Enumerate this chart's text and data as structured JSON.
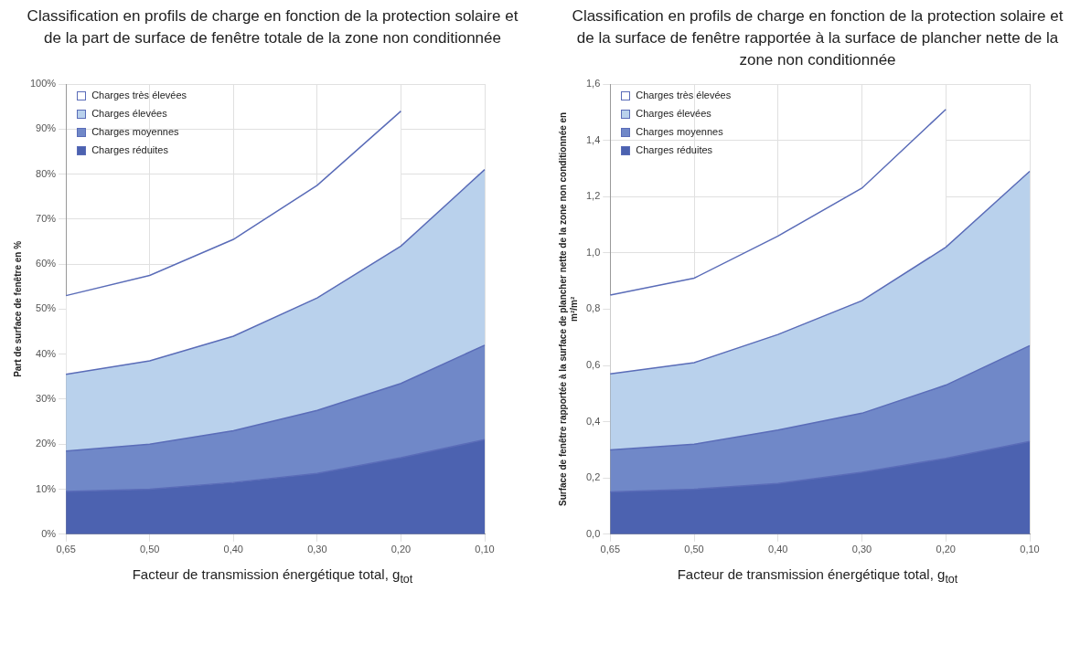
{
  "chart_data": [
    {
      "type": "area",
      "title": "Classification en profils de charge en fonction de la protection solaire et de la part de surface de fenêtre totale de la zone non conditionnée",
      "xlabel": "Facteur de transmission énergétique total, g$_{tot}$",
      "ylabel": "Part de surface de fenêtre en %",
      "categories": [
        "0,65",
        "0,50",
        "0,40",
        "0,30",
        "0,20",
        "0,10"
      ],
      "stacked": true,
      "ylim": [
        0,
        100
      ],
      "yticks": [
        {
          "value": 0,
          "label": "0%"
        },
        {
          "value": 10,
          "label": "10%"
        },
        {
          "value": 20,
          "label": "20%"
        },
        {
          "value": 30,
          "label": "30%"
        },
        {
          "value": 40,
          "label": "40%"
        },
        {
          "value": 50,
          "label": "50%"
        },
        {
          "value": 60,
          "label": "60%"
        },
        {
          "value": 70,
          "label": "70%"
        },
        {
          "value": 80,
          "label": "80%"
        },
        {
          "value": 90,
          "label": "90%"
        },
        {
          "value": 100,
          "label": "100%"
        }
      ],
      "grid": true,
      "legend": "top left",
      "series": [
        {
          "name": "Charges réduites",
          "color": "#4c62b0",
          "values": [
            9.5,
            10,
            11.5,
            13.5,
            17,
            21
          ]
        },
        {
          "name": "Charges moyennes",
          "color": "#7088c8",
          "values": [
            9,
            10,
            11.5,
            14,
            16.5,
            21
          ]
        },
        {
          "name": "Charges élevées",
          "color": "#b9d1ec",
          "values": [
            17,
            18.5,
            21,
            25,
            30.5,
            39
          ]
        },
        {
          "name": "Charges très élevées",
          "color": "#ffffff",
          "values": [
            17.5,
            19,
            21.5,
            25,
            30,
            null
          ]
        }
      ]
    },
    {
      "type": "area",
      "title": "Classification en profils de charge en fonction de la protection solaire et de la surface de fenêtre rapportée à la surface de plancher nette de la zone non conditionnée",
      "xlabel": "Facteur de transmission énergétique total, g$_{tot}$",
      "ylabel": "Surface de fenêtre rapportée à la surface de plancher nette de la zone non conditionnée en m²/m²",
      "categories": [
        "0,65",
        "0,50",
        "0,40",
        "0,30",
        "0,20",
        "0,10"
      ],
      "stacked": true,
      "ylim": [
        0,
        1.6
      ],
      "yticks": [
        {
          "value": 0,
          "label": "0,0"
        },
        {
          "value": 0.2,
          "label": "0,2"
        },
        {
          "value": 0.4,
          "label": "0,4"
        },
        {
          "value": 0.6,
          "label": "0,6"
        },
        {
          "value": 0.8,
          "label": "0,8"
        },
        {
          "value": 1,
          "label": "1,0"
        },
        {
          "value": 1.2,
          "label": "1,2"
        },
        {
          "value": 1.4,
          "label": "1,4"
        },
        {
          "value": 1.6,
          "label": "1,6"
        }
      ],
      "grid": true,
      "legend": "top left",
      "series": [
        {
          "name": "Charges réduites",
          "color": "#4c62b0",
          "values": [
            0.15,
            0.16,
            0.18,
            0.22,
            0.27,
            0.33
          ]
        },
        {
          "name": "Charges moyennes",
          "color": "#7088c8",
          "values": [
            0.15,
            0.16,
            0.19,
            0.21,
            0.26,
            0.34
          ]
        },
        {
          "name": "Charges élevées",
          "color": "#b9d1ec",
          "values": [
            0.27,
            0.29,
            0.34,
            0.4,
            0.49,
            0.62
          ]
        },
        {
          "name": "Charges très élevées",
          "color": "#ffffff",
          "values": [
            0.28,
            0.3,
            0.35,
            0.4,
            0.49,
            null
          ]
        }
      ]
    }
  ]
}
